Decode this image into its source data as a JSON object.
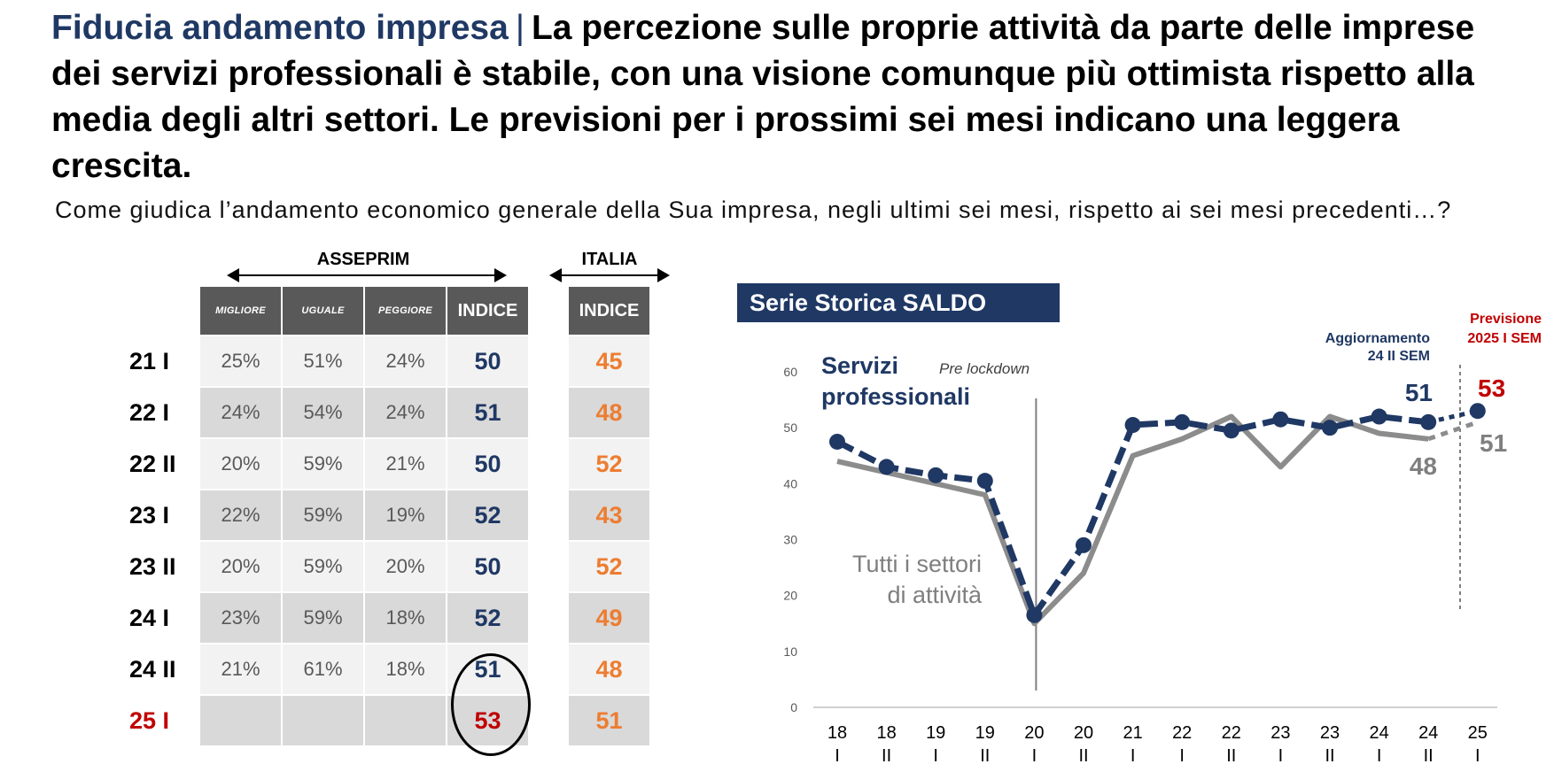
{
  "header": {
    "topic": "Fiducia andamento impresa",
    "separator": "|",
    "headline": "La percezione sulle proprie attività da parte delle imprese dei servizi professionali è stabile, con una visione comunque più ottimista rispetto alla media degli altri settori. Le previsioni per i prossimi sei mesi indicano una leggera crescita."
  },
  "question": "Come giudica l’andamento economico generale della Sua impresa, negli ultimi sei mesi, rispetto ai sei mesi precedenti…?",
  "table": {
    "group_asseprim": "ASSEPRIM",
    "group_italia": "ITALIA",
    "headers": [
      "MIGLIORE",
      "UGUALE",
      "PEGGIORE",
      "INDICE"
    ],
    "italia_header": "INDICE",
    "rows": [
      {
        "label": "21 I",
        "migliore": "25%",
        "uguale": "51%",
        "peggiore": "24%",
        "indice": "50",
        "italia": "45"
      },
      {
        "label": "22 I",
        "migliore": "24%",
        "uguale": "54%",
        "peggiore": "24%",
        "indice": "51",
        "italia": "48"
      },
      {
        "label": "22 II",
        "migliore": "20%",
        "uguale": "59%",
        "peggiore": "21%",
        "indice": "50",
        "italia": "52"
      },
      {
        "label": "23 I",
        "migliore": "22%",
        "uguale": "59%",
        "peggiore": "19%",
        "indice": "52",
        "italia": "43"
      },
      {
        "label": "23 II",
        "migliore": "20%",
        "uguale": "59%",
        "peggiore": "20%",
        "indice": "50",
        "italia": "52"
      },
      {
        "label": "24 I",
        "migliore": "23%",
        "uguale": "59%",
        "peggiore": "18%",
        "indice": "52",
        "italia": "49"
      },
      {
        "label": "24 II",
        "migliore": "21%",
        "uguale": "61%",
        "peggiore": "18%",
        "indice": "51",
        "italia": "48"
      },
      {
        "label": "25 I",
        "migliore": "",
        "uguale": "",
        "peggiore": "",
        "indice": "53",
        "italia": "51"
      }
    ]
  },
  "colors": {
    "navy": "#1f3864",
    "gray_series": "#8c8c8c",
    "orange": "#ed7d31",
    "red": "#c00000",
    "header_bg": "#595959"
  },
  "chart_data": {
    "type": "line",
    "title": "Serie Storica SALDO",
    "ylim": [
      0,
      60
    ],
    "yticks": [
      0,
      10,
      20,
      30,
      40,
      50,
      60
    ],
    "categories": [
      [
        "18",
        "I"
      ],
      [
        "18",
        "II"
      ],
      [
        "19",
        "I"
      ],
      [
        "19",
        "II"
      ],
      [
        "20",
        "I"
      ],
      [
        "20",
        "II"
      ],
      [
        "21",
        "I"
      ],
      [
        "22",
        "I"
      ],
      [
        "22",
        "II"
      ],
      [
        "23",
        "I"
      ],
      [
        "23",
        "II"
      ],
      [
        "24",
        "I"
      ],
      [
        "24",
        "II"
      ],
      [
        "25",
        "I"
      ]
    ],
    "series": [
      {
        "name": "Servizi professionali",
        "style": "dotted-markers",
        "values": [
          47.5,
          43,
          41.5,
          40.5,
          16.5,
          29,
          50.5,
          51,
          49.5,
          51.5,
          50,
          52,
          51,
          53
        ],
        "forecast_from_index": 12
      },
      {
        "name": "Tutti i settori di attività",
        "style": "solid",
        "values": [
          44,
          null,
          null,
          38,
          15,
          24,
          45,
          48,
          52,
          43,
          52,
          49,
          48,
          51
        ],
        "forecast_from_index": 12
      }
    ],
    "annotations": {
      "pre_lockdown": "Pre lockdown",
      "aggiornamento_line1": "Aggiornamento",
      "aggiornamento_line2": "24 II SEM",
      "previsione_line1": "Previsione",
      "previsione_line2": "2025 I SEM",
      "label_navy_24II": "51",
      "label_gray_24II": "48",
      "label_navy_25I": "53",
      "label_gray_25I": "51",
      "series1_label_line1": "Servizi",
      "series1_label_line2": "professionali",
      "series2_label_line1": "Tutti i settori",
      "series2_label_line2": "di attività"
    }
  }
}
